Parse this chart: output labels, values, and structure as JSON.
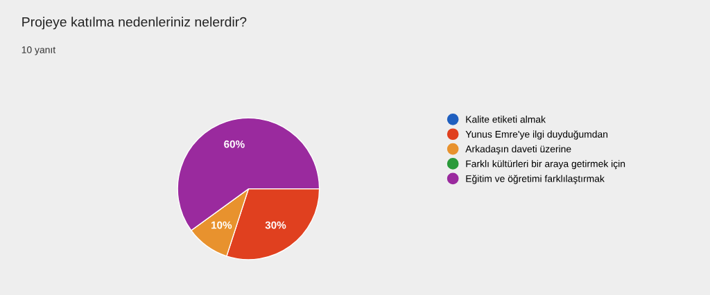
{
  "chart_data": {
    "type": "pie",
    "title": "Projeye katılma nedenleriniz nelerdir?",
    "subtitle": "10 yanıt",
    "categories": [
      "Kalite etiketi almak",
      "Yunus Emre'ye ilgi duyduğumdan",
      "Arkadaşın daveti üzerine",
      "Farklı kültürleri bir araya getirmek için",
      "Eğitim ve öğretimi farklılaştırmak"
    ],
    "values": [
      0,
      30,
      10,
      0,
      60
    ],
    "value_labels": [
      null,
      "30%",
      "10%",
      null,
      "60%"
    ],
    "colors": [
      "#1f5fbf",
      "#e0401f",
      "#e8922e",
      "#2a9a3a",
      "#9a2a9e"
    ],
    "legend": "right"
  }
}
